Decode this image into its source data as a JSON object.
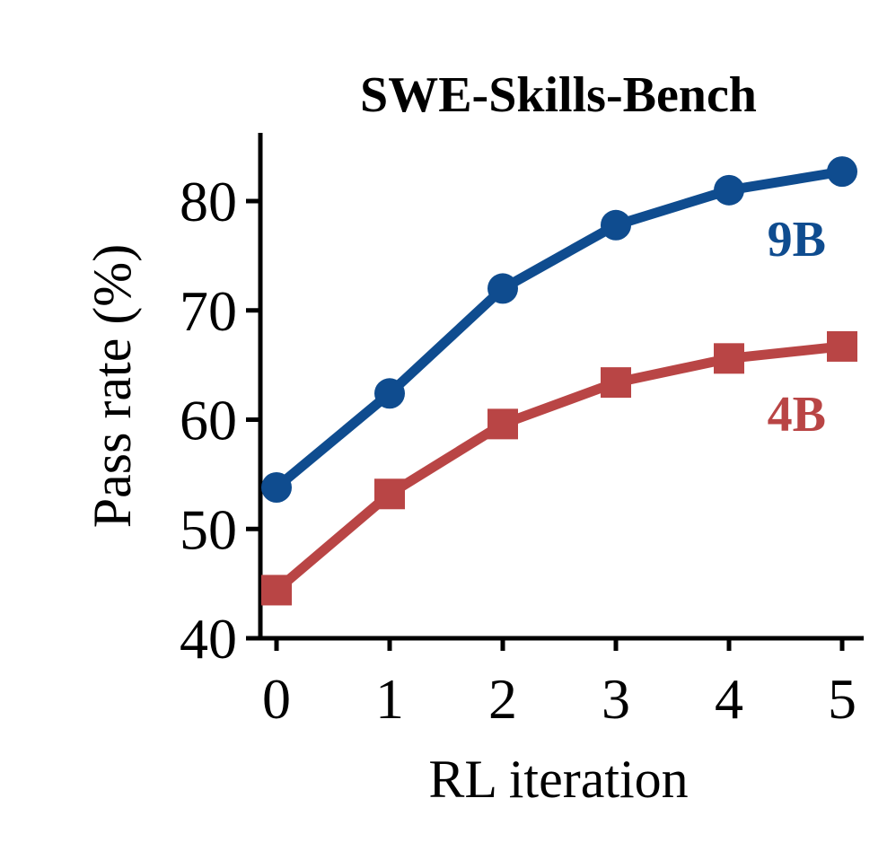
{
  "chart_data": {
    "type": "line",
    "title": "SWE-Skills-Bench",
    "xlabel": "RL iteration",
    "ylabel": "Pass rate (%)",
    "x": [
      0,
      1,
      2,
      3,
      4,
      5
    ],
    "xticks": [
      "0",
      "1",
      "2",
      "3",
      "4",
      "5"
    ],
    "yticks": [
      "40",
      "50",
      "60",
      "70",
      "80"
    ],
    "xlim": [
      -0.15,
      5.2
    ],
    "ylim": [
      40,
      86
    ],
    "grid": false,
    "series": [
      {
        "name": "9B",
        "values": [
          53.8,
          62.4,
          72.0,
          77.8,
          81.0,
          82.7
        ],
        "color": "#0f4c8f",
        "marker": "circle"
      },
      {
        "name": "4B",
        "values": [
          44.4,
          53.2,
          59.6,
          63.4,
          65.6,
          66.7
        ],
        "color": "#b94545",
        "marker": "square"
      }
    ]
  }
}
